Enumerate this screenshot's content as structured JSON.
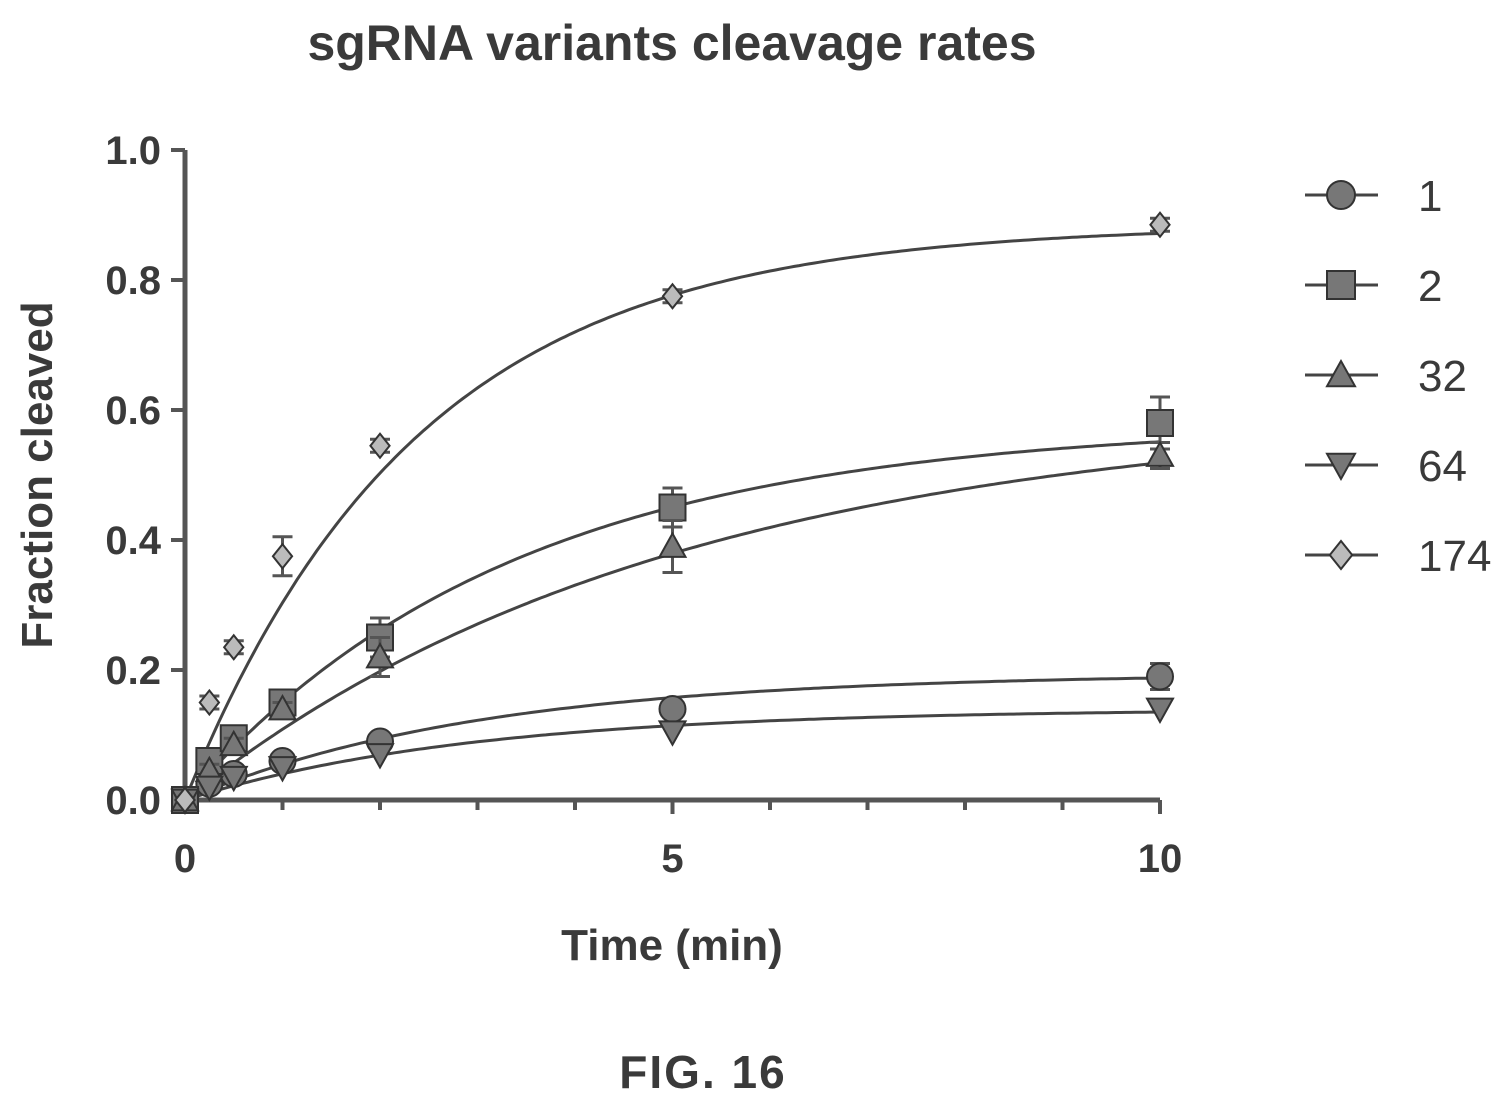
{
  "chart_data": {
    "type": "line",
    "title": "sgRNA variants cleavage rates",
    "xlabel": "Time (min)",
    "ylabel": "Fraction cleaved",
    "xlim": [
      0,
      10
    ],
    "ylim": [
      0,
      1.0
    ],
    "xticks": [
      "0",
      "5",
      "10"
    ],
    "yticks": [
      "0.0",
      "0.2",
      "0.4",
      "0.6",
      "0.8",
      "1.0"
    ],
    "legend_position": "right",
    "grid": false,
    "x": [
      0,
      0.25,
      0.5,
      1,
      2,
      5,
      10
    ],
    "series": [
      {
        "name": "1",
        "marker": "circle",
        "values": [
          0,
          0.025,
          0.04,
          0.06,
          0.09,
          0.14,
          0.19
        ],
        "plateau": 0.195,
        "rate": 0.33,
        "errors": [
          0,
          0,
          0,
          0,
          0,
          0.01,
          0.02
        ]
      },
      {
        "name": "2",
        "marker": "square",
        "values": [
          0,
          0.06,
          0.095,
          0.15,
          0.25,
          0.45,
          0.58
        ],
        "plateau": 0.58,
        "rate": 0.3,
        "errors": [
          0,
          0.01,
          0.01,
          0.01,
          0.03,
          0.03,
          0.04
        ]
      },
      {
        "name": "32",
        "marker": "triangle-up",
        "values": [
          0,
          0.045,
          0.085,
          0.14,
          0.22,
          0.39,
          0.53
        ],
        "plateau": 0.6,
        "rate": 0.2,
        "errors": [
          0,
          0.01,
          0.01,
          0.01,
          0.03,
          0.04,
          0.02
        ]
      },
      {
        "name": "64",
        "marker": "triangle-down",
        "values": [
          0,
          0.02,
          0.035,
          0.05,
          0.07,
          0.105,
          0.14
        ],
        "plateau": 0.14,
        "rate": 0.34,
        "errors": [
          0,
          0,
          0,
          0,
          0,
          0,
          0
        ]
      },
      {
        "name": "174",
        "marker": "diamond",
        "values": [
          0,
          0.15,
          0.235,
          0.375,
          0.545,
          0.775,
          0.885
        ],
        "plateau": 0.885,
        "rate": 0.42,
        "errors": [
          0,
          0.01,
          0.01,
          0.03,
          0.01,
          0.01,
          0.01
        ]
      }
    ]
  },
  "figure_label": "FIG. 16"
}
